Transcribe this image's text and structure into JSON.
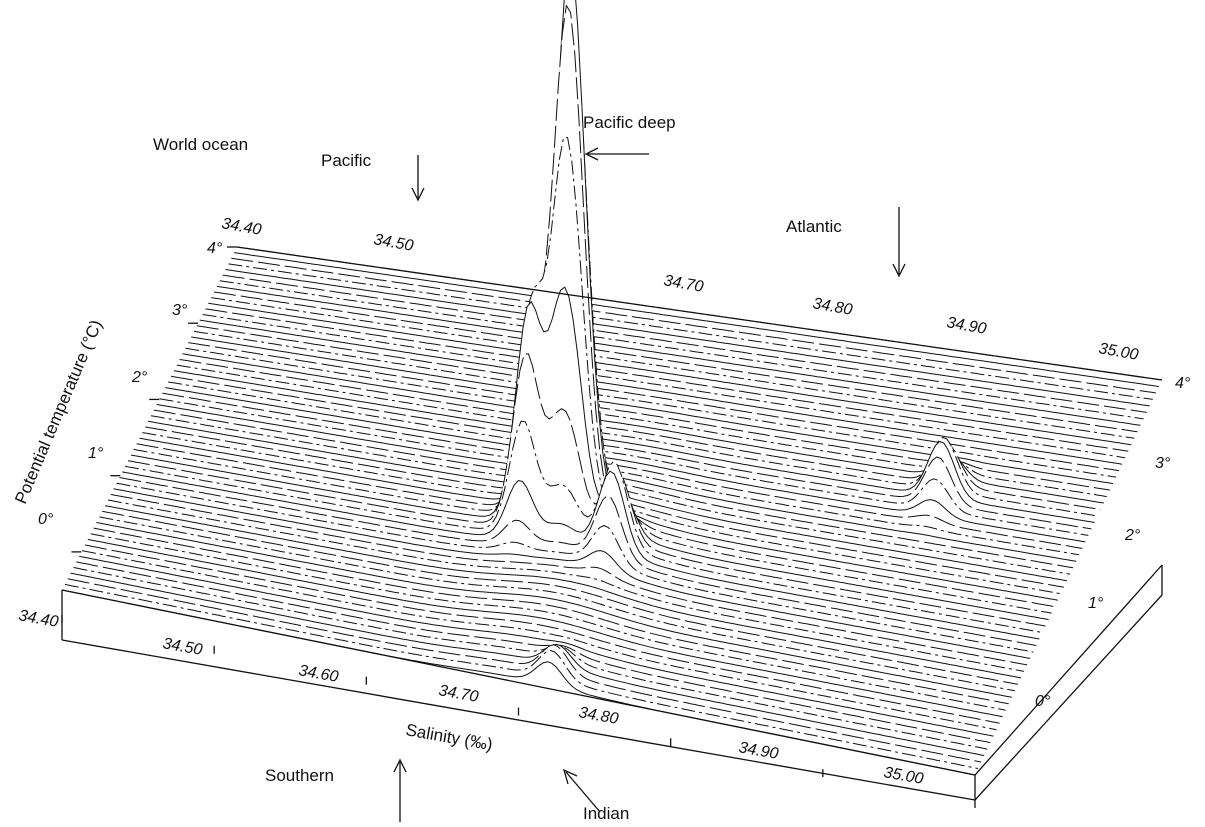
{
  "chart_data": {
    "type": "3d-surface",
    "title": "World ocean",
    "xlabel": "Salinity (‰)",
    "ylabel": "Potential temperature (°C)",
    "x_ticks": [
      "34.40",
      "34.50",
      "34.60",
      "34.70",
      "34.80",
      "34.90",
      "35.00"
    ],
    "y_ticks": [
      "0°",
      "1°",
      "2°",
      "3°",
      "4°"
    ],
    "back_x_ticks": [
      "34.40",
      "34.50",
      "34.70",
      "34.80",
      "34.90",
      "35.00"
    ],
    "right_y_ticks": [
      "0°",
      "1°",
      "2°",
      "3°",
      "4°"
    ],
    "xlim": [
      34.4,
      35.0
    ],
    "ylim": [
      -0.5,
      4.0
    ],
    "peaks": [
      {
        "salinity": 34.68,
        "temperature": 1.5,
        "relative_height": 1.0
      },
      {
        "salinity": 34.66,
        "temperature": 1.3,
        "relative_height": 0.45
      },
      {
        "salinity": 34.69,
        "temperature": 1.4,
        "relative_height": 0.35
      },
      {
        "salinity": 34.72,
        "temperature": 1.1,
        "relative_height": 0.18
      },
      {
        "salinity": 34.9,
        "temperature": 2.4,
        "relative_height": 0.12
      },
      {
        "salinity": 34.72,
        "temperature": -0.4,
        "relative_height": 0.06
      }
    ],
    "annotations": [
      {
        "text": "Pacific",
        "arrow": "down"
      },
      {
        "text": "Pacific deep",
        "arrow": "left"
      },
      {
        "text": "Atlantic",
        "arrow": "down"
      },
      {
        "text": "Southern",
        "arrow": "up"
      },
      {
        "text": "Indian",
        "arrow": "up-left"
      }
    ]
  }
}
